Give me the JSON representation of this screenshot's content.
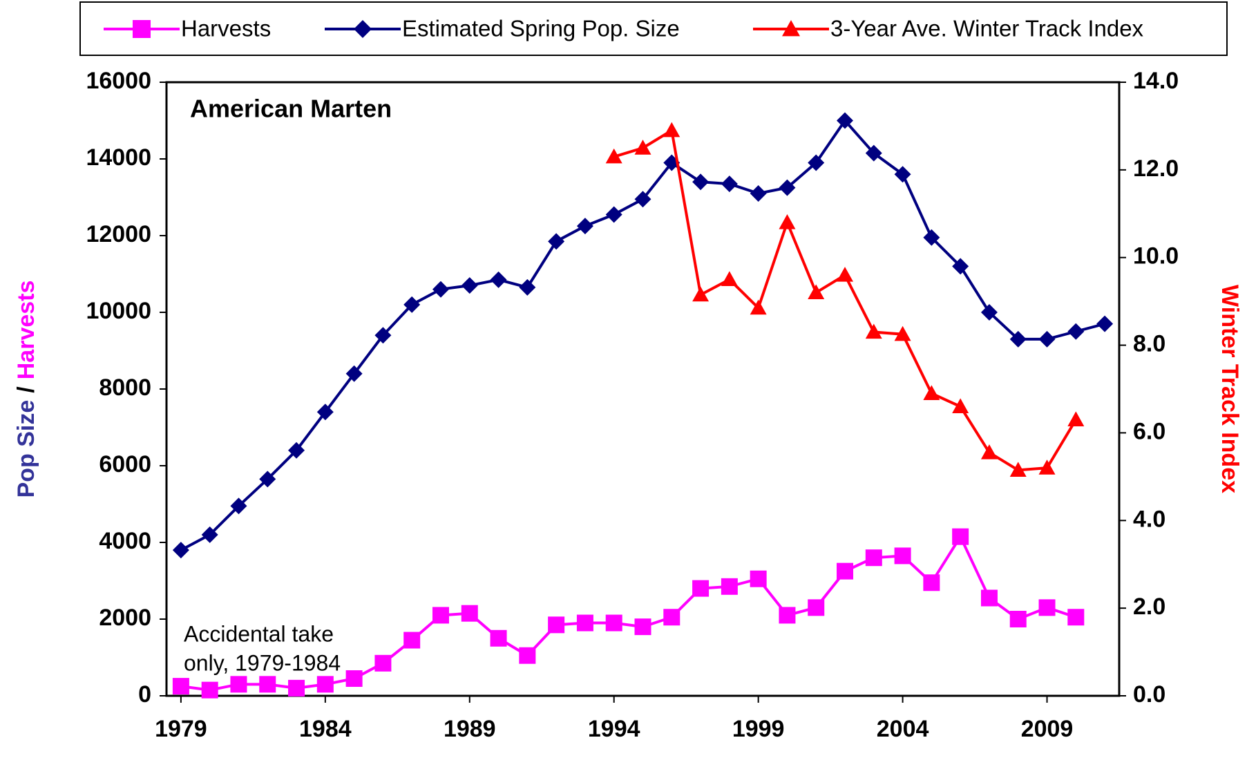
{
  "chart_data": {
    "type": "line",
    "title": "American Marten",
    "ylabel": [
      {
        "text": "Pop Size",
        "color": "#333399"
      },
      {
        "text": "/",
        "color": "#000000"
      },
      {
        "text": "Harvests",
        "color": "#ff00ff"
      }
    ],
    "y2label": {
      "text": "Winter Track Index",
      "color": "#ff0000"
    },
    "annotation": [
      "Accidental take",
      "only, 1979-1984"
    ],
    "x": [
      1979,
      1980,
      1981,
      1982,
      1983,
      1984,
      1985,
      1986,
      1987,
      1988,
      1989,
      1990,
      1991,
      1992,
      1993,
      1994,
      1995,
      1996,
      1997,
      1998,
      1999,
      2000,
      2001,
      2002,
      2003,
      2004,
      2005,
      2006,
      2007,
      2008,
      2009,
      2010,
      2011
    ],
    "xlim": [
      1978.5,
      2011.5
    ],
    "xticks": [
      1979,
      1984,
      1989,
      1994,
      1999,
      2004,
      2009
    ],
    "ylim": [
      0,
      16000
    ],
    "yticks": [
      0,
      2000,
      4000,
      6000,
      8000,
      10000,
      12000,
      14000,
      16000
    ],
    "y2lim": [
      0,
      14
    ],
    "y2ticks": [
      {
        "value": 0,
        "label": "0.0"
      },
      {
        "value": 2,
        "label": "2.0"
      },
      {
        "value": 4,
        "label": "4.0"
      },
      {
        "value": 6,
        "label": "6.0"
      },
      {
        "value": 8,
        "label": "8.0"
      },
      {
        "value": 10,
        "label": "10.0"
      },
      {
        "value": 12,
        "label": "12.0"
      },
      {
        "value": 14,
        "label": "14.0"
      }
    ],
    "series": [
      {
        "name": "Harvests",
        "color": "#ff00ff",
        "marker": "square",
        "values": [
          250,
          150,
          300,
          300,
          200,
          300,
          450,
          850,
          1450,
          2100,
          2150,
          1500,
          1050,
          1850,
          1900,
          1900,
          1800,
          2050,
          2800,
          2850,
          3050,
          2100,
          2300,
          3250,
          3600,
          3650,
          2950,
          4150,
          2550,
          2000,
          2300,
          2050,
          null
        ]
      },
      {
        "name": "Estimated Spring Pop. Size",
        "color": "#000080",
        "marker": "diamond",
        "values": [
          3800,
          4200,
          4950,
          5650,
          6400,
          7400,
          8400,
          9400,
          10200,
          10600,
          10700,
          10850,
          10650,
          11850,
          12250,
          12550,
          12950,
          13900,
          13400,
          13350,
          13100,
          13250,
          13900,
          15000,
          14150,
          13600,
          11950,
          11200,
          10000,
          9300,
          9300,
          9500,
          9700
        ]
      },
      {
        "name": "3-Year Ave. Winter Track  Index",
        "color": "#ff0000",
        "marker": "triangle",
        "axis": "y2",
        "values": [
          null,
          null,
          null,
          null,
          null,
          null,
          null,
          null,
          null,
          null,
          null,
          null,
          null,
          null,
          null,
          12.3,
          12.5,
          12.9,
          9.15,
          9.5,
          8.85,
          10.8,
          9.2,
          9.6,
          8.3,
          8.25,
          6.9,
          6.6,
          5.55,
          5.15,
          5.2,
          6.3,
          null
        ]
      }
    ]
  }
}
